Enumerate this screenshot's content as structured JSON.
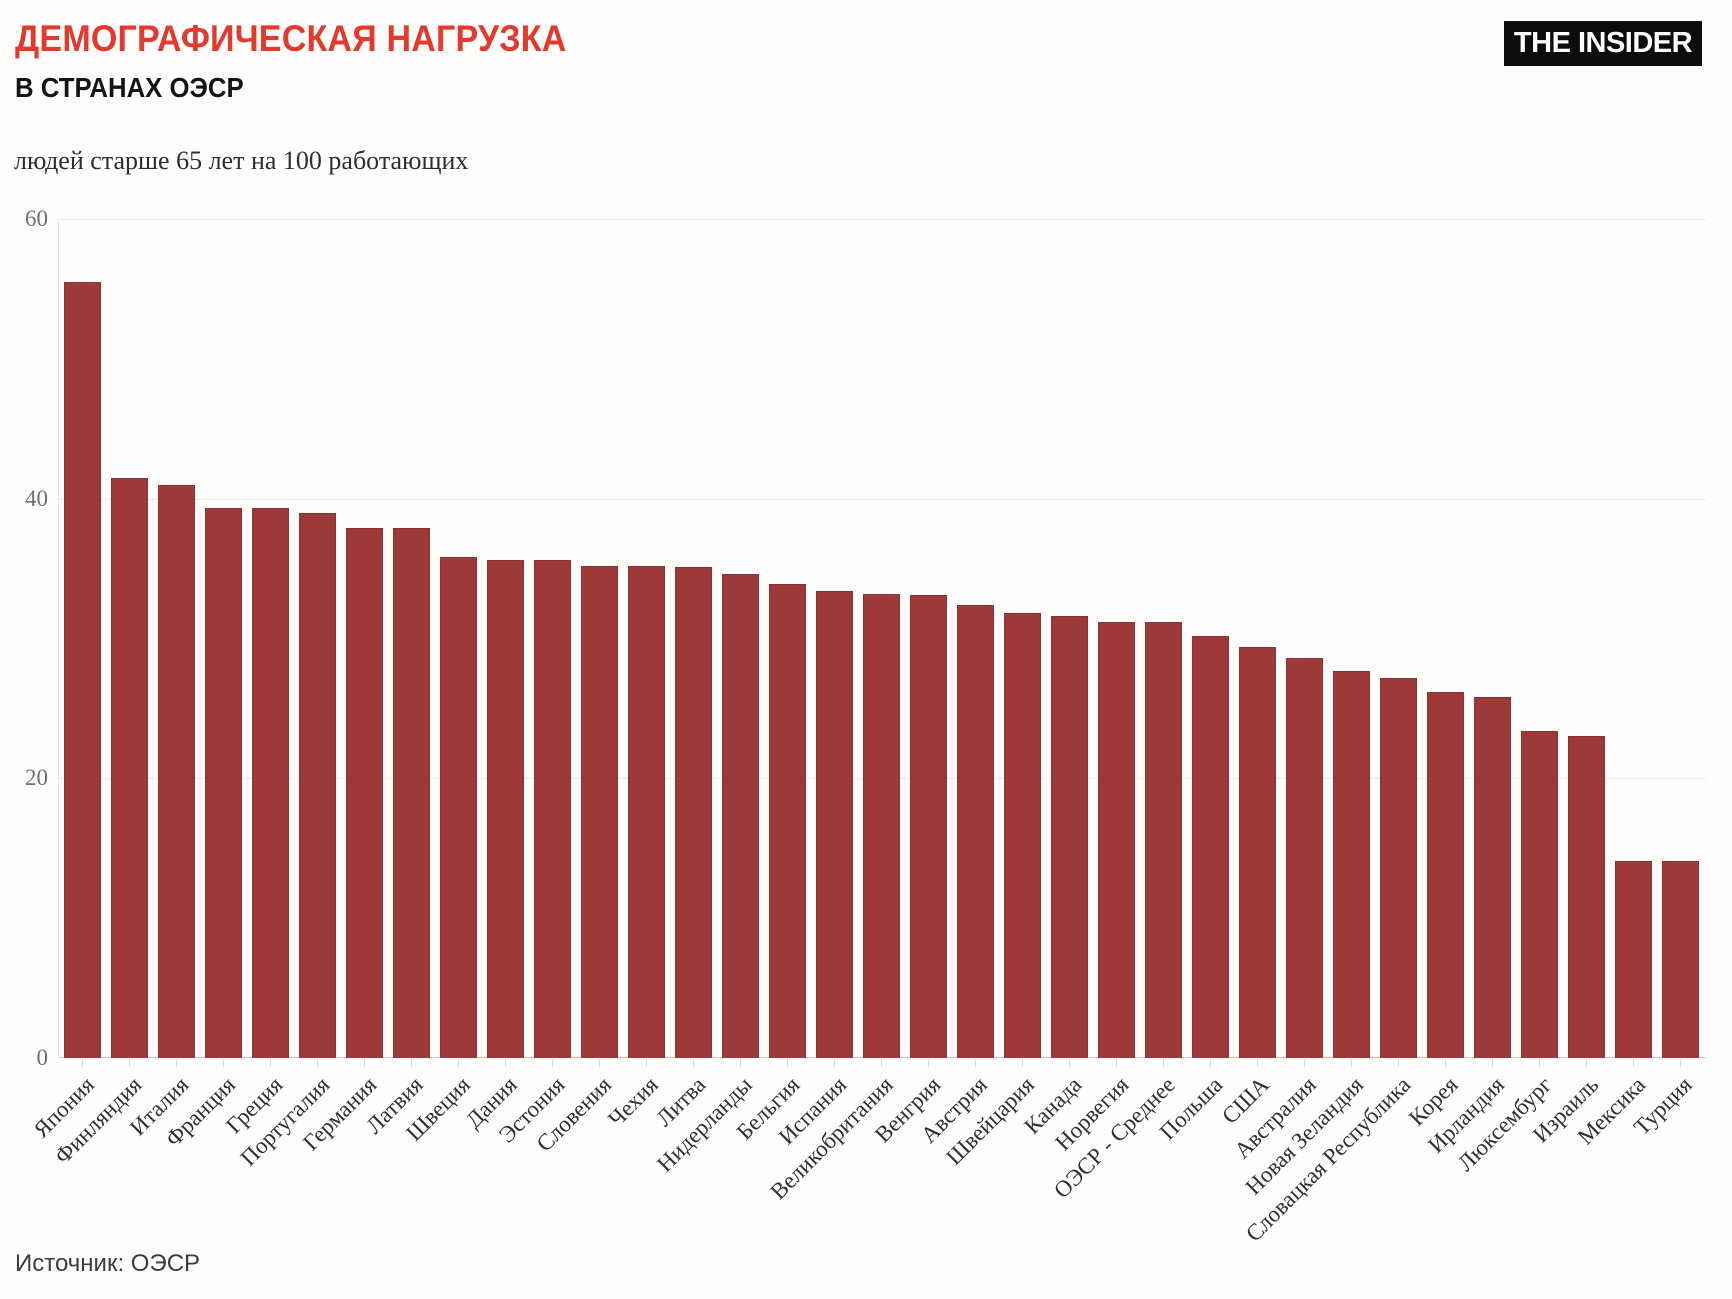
{
  "header": {
    "title": "ДЕМОГРАФИЧЕСКАЯ НАГРУЗКА",
    "subtitle": "В СТРАНАХ ОЭСР",
    "logo_text": "THE INSIDER"
  },
  "footer": {
    "source": "Источник: ОЭСР"
  },
  "chart_data": {
    "type": "bar",
    "title": "ДЕМОГРАФИЧЕСКАЯ НАГРУЗКА В СТРАНАХ ОЭСР",
    "ylabel": "людей старше 65 лет на 100 работающих",
    "xlabel": "",
    "categories": [
      "Япония",
      "Финляндия",
      "Италия",
      "Франция",
      "Греция",
      "Португалия",
      "Германия",
      "Латвия",
      "Швеция",
      "Дания",
      "Эстония",
      "Словения",
      "Чехия",
      "Литва",
      "Нидерланды",
      "Бельгия",
      "Испания",
      "Великобритания",
      "Венгрия",
      "Австрия",
      "Швейцария",
      "Канада",
      "Норвегия",
      "ОЭСР - Среднее",
      "Польша",
      "США",
      "Австралия",
      "Новая Зеландия",
      "Словацкая Республика",
      "Корея",
      "Ирландия",
      "Люксембург",
      "Израиль",
      "Мексика",
      "Турция"
    ],
    "values": [
      55.5,
      41.5,
      41.0,
      39.3,
      39.3,
      39.0,
      37.9,
      37.9,
      35.8,
      35.6,
      35.6,
      35.2,
      35.2,
      35.1,
      34.6,
      33.9,
      33.4,
      33.2,
      33.1,
      32.4,
      31.8,
      31.6,
      31.2,
      31.2,
      30.2,
      29.4,
      28.6,
      27.7,
      27.2,
      26.2,
      25.8,
      23.4,
      23.0,
      14.1,
      14.1
    ],
    "yticks": [
      0,
      20,
      40,
      60
    ],
    "ylim": [
      0,
      60
    ],
    "grid": true,
    "legend": false,
    "bar_color": "#9d3a38",
    "title_color": "#e4392d",
    "source": "Источник: ОЭСР"
  }
}
